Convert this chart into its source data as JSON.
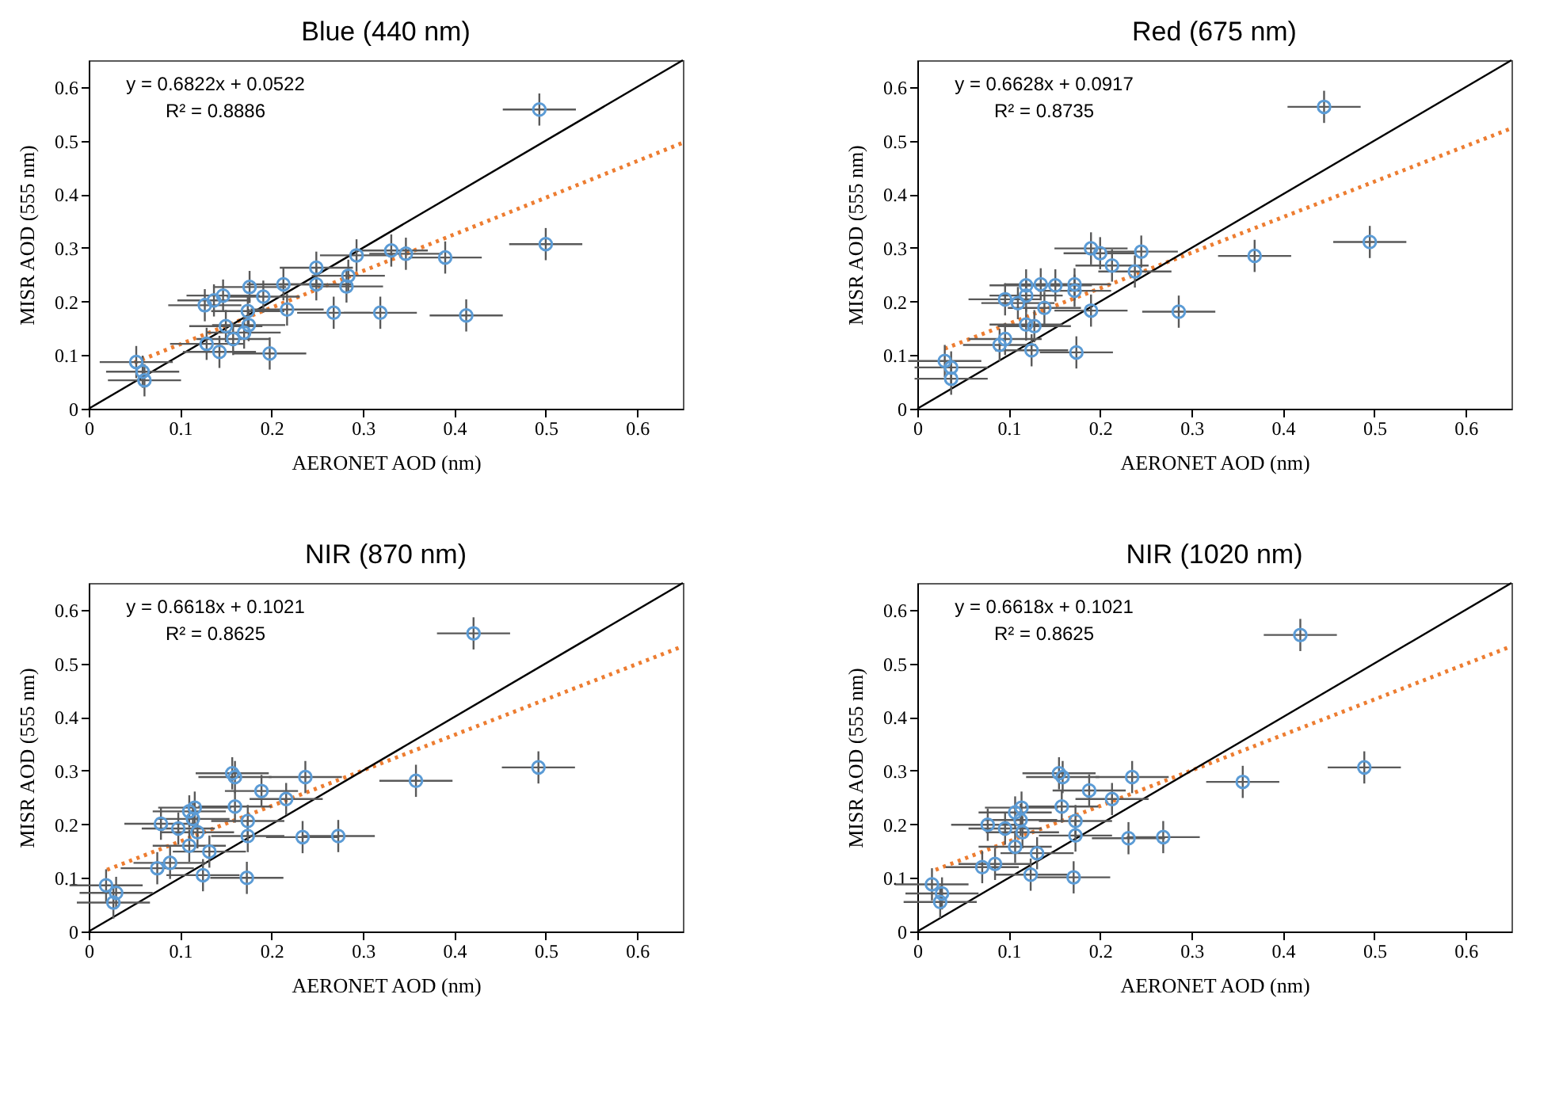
{
  "chart_data": [
    {
      "type": "scatter",
      "title": "Blue (440 nm)",
      "xlabel": "AERONET  AOD (nm)",
      "ylabel": "MISR AOD (555 nm)",
      "annotations": [
        "y = 0.6822x + 0.0522",
        "R² = 0.8886"
      ],
      "xlim": [
        0,
        0.65
      ],
      "ylim": [
        0,
        0.65
      ],
      "xticks": [
        0,
        0.1,
        0.2,
        0.3,
        0.4,
        0.5,
        0.6
      ],
      "yticks": [
        0,
        0.1,
        0.2,
        0.3,
        0.4,
        0.5,
        0.6
      ],
      "marker": "circle",
      "series": [
        {
          "type": "scatter",
          "color": "#5b9bd5",
          "x": [
            0.493,
            0.5,
            0.39,
            0.347,
            0.331,
            0.293,
            0.249,
            0.249,
            0.284,
            0.282,
            0.213,
            0.176,
            0.191,
            0.147,
            0.137,
            0.127,
            0.174,
            0.217,
            0.268,
            0.319,
            0.413,
            0.15,
            0.175,
            0.17,
            0.158,
            0.129,
            0.143,
            0.198,
            0.052,
            0.059,
            0.061
          ],
          "values": [
            0.558,
            0.307,
            0.282,
            0.289,
            0.295,
            0.286,
            0.263,
            0.232,
            0.248,
            0.228,
            0.232,
            0.227,
            0.209,
            0.211,
            0.202,
            0.193,
            0.182,
            0.185,
            0.179,
            0.179,
            0.174,
            0.154,
            0.156,
            0.142,
            0.13,
            0.121,
            0.106,
            0.103,
            0.087,
            0.069,
            0.053
          ],
          "errors": [
            0.03,
            0.03,
            0.03,
            0.03,
            0.03,
            0.03,
            0.03,
            0.03,
            0.03,
            0.03,
            0.03,
            0.03,
            0.03,
            0.03,
            0.03,
            0.03,
            0.03,
            0.03,
            0.03,
            0.03,
            0.03,
            0.03,
            0.03,
            0.03,
            0.03,
            0.03,
            0.03,
            0.03,
            0.03,
            0.03,
            0.03
          ],
          "xerrors": [
            0.04,
            0.04,
            0.04,
            0.04,
            0.04,
            0.04,
            0.04,
            0.04,
            0.04,
            0.04,
            0.04,
            0.04,
            0.04,
            0.04,
            0.04,
            0.04,
            0.04,
            0.04,
            0.04,
            0.04,
            0.04,
            0.04,
            0.04,
            0.04,
            0.04,
            0.04,
            0.04,
            0.04,
            0.04,
            0.04,
            0.04
          ]
        },
        {
          "type": "line",
          "color": "#ed7d31",
          "line_style": "dotted",
          "marker": "none",
          "x": [
            0.05,
            0.65
          ],
          "values": [
            0.086,
            0.496
          ]
        },
        {
          "type": "line",
          "color": "#000000",
          "line_style": "solid",
          "marker": "none",
          "x": [
            0,
            0.65
          ],
          "values": [
            0,
            0.65
          ]
        }
      ]
    },
    {
      "type": "scatter",
      "title": "Red (675 nm)",
      "xlabel": "AERONET  AOD (nm)",
      "ylabel": "MISR AOD (555 nm)",
      "annotations": [
        "y = 0.6628x + 0.0917",
        "R² = 0.8735"
      ],
      "xlim": [
        0,
        0.65
      ],
      "ylim": [
        0,
        0.65
      ],
      "xticks": [
        0,
        0.1,
        0.2,
        0.3,
        0.4,
        0.5,
        0.6
      ],
      "yticks": [
        0,
        0.1,
        0.2,
        0.3,
        0.4,
        0.5,
        0.6
      ],
      "marker": "circle",
      "series": [
        {
          "type": "scatter",
          "color": "#5b9bd5",
          "x": [
            0.445,
            0.495,
            0.369,
            0.286,
            0.245,
            0.238,
            0.213,
            0.2,
            0.19,
            0.172,
            0.172,
            0.151,
            0.135,
            0.119,
            0.119,
            0.096,
            0.11,
            0.139,
            0.19,
            0.119,
            0.128,
            0.096,
            0.09,
            0.125,
            0.174,
            0.03,
            0.037,
            0.037
          ],
          "values": [
            0.563,
            0.311,
            0.285,
            0.181,
            0.293,
            0.256,
            0.267,
            0.29,
            0.299,
            0.232,
            0.22,
            0.23,
            0.232,
            0.23,
            0.211,
            0.204,
            0.197,
            0.188,
            0.183,
            0.157,
            0.154,
            0.13,
            0.119,
            0.109,
            0.105,
            0.089,
            0.077,
            0.056
          ],
          "errors": [
            0.03,
            0.03,
            0.03,
            0.03,
            0.03,
            0.03,
            0.03,
            0.03,
            0.03,
            0.03,
            0.03,
            0.03,
            0.03,
            0.03,
            0.03,
            0.03,
            0.03,
            0.03,
            0.03,
            0.03,
            0.03,
            0.03,
            0.03,
            0.03,
            0.03,
            0.03,
            0.03,
            0.03
          ],
          "xerrors": [
            0.04,
            0.04,
            0.04,
            0.04,
            0.04,
            0.04,
            0.04,
            0.04,
            0.04,
            0.04,
            0.04,
            0.04,
            0.04,
            0.04,
            0.04,
            0.04,
            0.04,
            0.04,
            0.04,
            0.04,
            0.04,
            0.04,
            0.04,
            0.04,
            0.04,
            0.04,
            0.04,
            0.04
          ]
        },
        {
          "type": "line",
          "color": "#ed7d31",
          "line_style": "dotted",
          "marker": "none",
          "x": [
            0.03,
            0.65
          ],
          "values": [
            0.112,
            0.523
          ]
        },
        {
          "type": "line",
          "color": "#000000",
          "line_style": "solid",
          "marker": "none",
          "x": [
            0,
            0.65
          ],
          "values": [
            0,
            0.65
          ]
        }
      ]
    },
    {
      "type": "scatter",
      "title": "NIR (870 nm)",
      "xlabel": "AERONET  AOD (nm)",
      "ylabel": "MISR AOD (555 nm)",
      "annotations": [
        "y = 0.6618x + 0.1021",
        "R² = 0.8625"
      ],
      "xlim": [
        0,
        0.65
      ],
      "ylim": [
        0,
        0.65
      ],
      "xticks": [
        0,
        0.1,
        0.2,
        0.3,
        0.4,
        0.5,
        0.6
      ],
      "yticks": [
        0,
        0.1,
        0.2,
        0.3,
        0.4,
        0.5,
        0.6
      ],
      "marker": "circle",
      "series": [
        {
          "type": "scatter",
          "color": "#5b9bd5",
          "x": [
            0.421,
            0.492,
            0.358,
            0.273,
            0.234,
            0.237,
            0.216,
            0.189,
            0.157,
            0.16,
            0.16,
            0.174,
            0.174,
            0.116,
            0.11,
            0.114,
            0.079,
            0.098,
            0.119,
            0.11,
            0.132,
            0.089,
            0.075,
            0.125,
            0.173,
            0.019,
            0.03,
            0.027
          ],
          "values": [
            0.556,
            0.306,
            0.281,
            0.178,
            0.176,
            0.288,
            0.247,
            0.262,
            0.295,
            0.288,
            0.233,
            0.206,
            0.178,
            0.231,
            0.224,
            0.21,
            0.201,
            0.192,
            0.185,
            0.16,
            0.149,
            0.128,
            0.118,
            0.105,
            0.1,
            0.086,
            0.072,
            0.054
          ],
          "errors": [
            0.03,
            0.03,
            0.03,
            0.03,
            0.03,
            0.03,
            0.03,
            0.03,
            0.03,
            0.03,
            0.03,
            0.03,
            0.03,
            0.03,
            0.03,
            0.03,
            0.03,
            0.03,
            0.03,
            0.03,
            0.03,
            0.03,
            0.03,
            0.03,
            0.03,
            0.03,
            0.03,
            0.03
          ],
          "xerrors": [
            0.04,
            0.04,
            0.04,
            0.04,
            0.04,
            0.04,
            0.04,
            0.04,
            0.04,
            0.04,
            0.04,
            0.04,
            0.04,
            0.04,
            0.04,
            0.04,
            0.04,
            0.04,
            0.04,
            0.04,
            0.04,
            0.04,
            0.04,
            0.04,
            0.04,
            0.04,
            0.04,
            0.04
          ]
        },
        {
          "type": "line",
          "color": "#ed7d31",
          "line_style": "dotted",
          "marker": "none",
          "x": [
            0.02,
            0.65
          ],
          "values": [
            0.115,
            0.532
          ]
        },
        {
          "type": "line",
          "color": "#000000",
          "line_style": "solid",
          "marker": "none",
          "x": [
            0,
            0.65
          ],
          "values": [
            0,
            0.65
          ]
        }
      ]
    },
    {
      "type": "scatter",
      "title": "NIR (1020 nm)",
      "xlabel": "AERONET  AOD (nm)",
      "ylabel": "MISR AOD (555 nm)",
      "annotations": [
        "y = 0.6618x + 0.1021",
        "R² = 0.8625"
      ],
      "xlim": [
        0,
        0.65
      ],
      "ylim": [
        0,
        0.65
      ],
      "xticks": [
        0,
        0.1,
        0.2,
        0.3,
        0.4,
        0.5,
        0.6
      ],
      "yticks": [
        0,
        0.1,
        0.2,
        0.3,
        0.4,
        0.5,
        0.6
      ],
      "marker": "circle",
      "series": [
        {
          "type": "scatter",
          "color": "#5b9bd5",
          "x": [
            0.419,
            0.489,
            0.356,
            0.269,
            0.231,
            0.235,
            0.213,
            0.188,
            0.155,
            0.159,
            0.158,
            0.173,
            0.173,
            0.114,
            0.107,
            0.113,
            0.077,
            0.096,
            0.115,
            0.107,
            0.131,
            0.085,
            0.071,
            0.124,
            0.171,
            0.016,
            0.027,
            0.025
          ],
          "values": [
            0.553,
            0.306,
            0.279,
            0.176,
            0.174,
            0.288,
            0.247,
            0.263,
            0.295,
            0.288,
            0.233,
            0.206,
            0.179,
            0.231,
            0.222,
            0.208,
            0.199,
            0.192,
            0.185,
            0.158,
            0.146,
            0.126,
            0.12,
            0.106,
            0.101,
            0.088,
            0.071,
            0.055
          ],
          "errors": [
            0.03,
            0.03,
            0.03,
            0.03,
            0.03,
            0.03,
            0.03,
            0.03,
            0.03,
            0.03,
            0.03,
            0.03,
            0.03,
            0.03,
            0.03,
            0.03,
            0.03,
            0.03,
            0.03,
            0.03,
            0.03,
            0.03,
            0.03,
            0.03,
            0.03,
            0.03,
            0.03,
            0.03
          ],
          "xerrors": [
            0.04,
            0.04,
            0.04,
            0.04,
            0.04,
            0.04,
            0.04,
            0.04,
            0.04,
            0.04,
            0.04,
            0.04,
            0.04,
            0.04,
            0.04,
            0.04,
            0.04,
            0.04,
            0.04,
            0.04,
            0.04,
            0.04,
            0.04,
            0.04,
            0.04,
            0.04,
            0.04,
            0.04
          ]
        },
        {
          "type": "line",
          "color": "#ed7d31",
          "line_style": "dotted",
          "marker": "none",
          "x": [
            0.02,
            0.65
          ],
          "values": [
            0.115,
            0.532
          ]
        },
        {
          "type": "line",
          "color": "#000000",
          "line_style": "solid",
          "marker": "none",
          "x": [
            0,
            0.65
          ],
          "values": [
            0,
            0.65
          ]
        }
      ]
    }
  ]
}
